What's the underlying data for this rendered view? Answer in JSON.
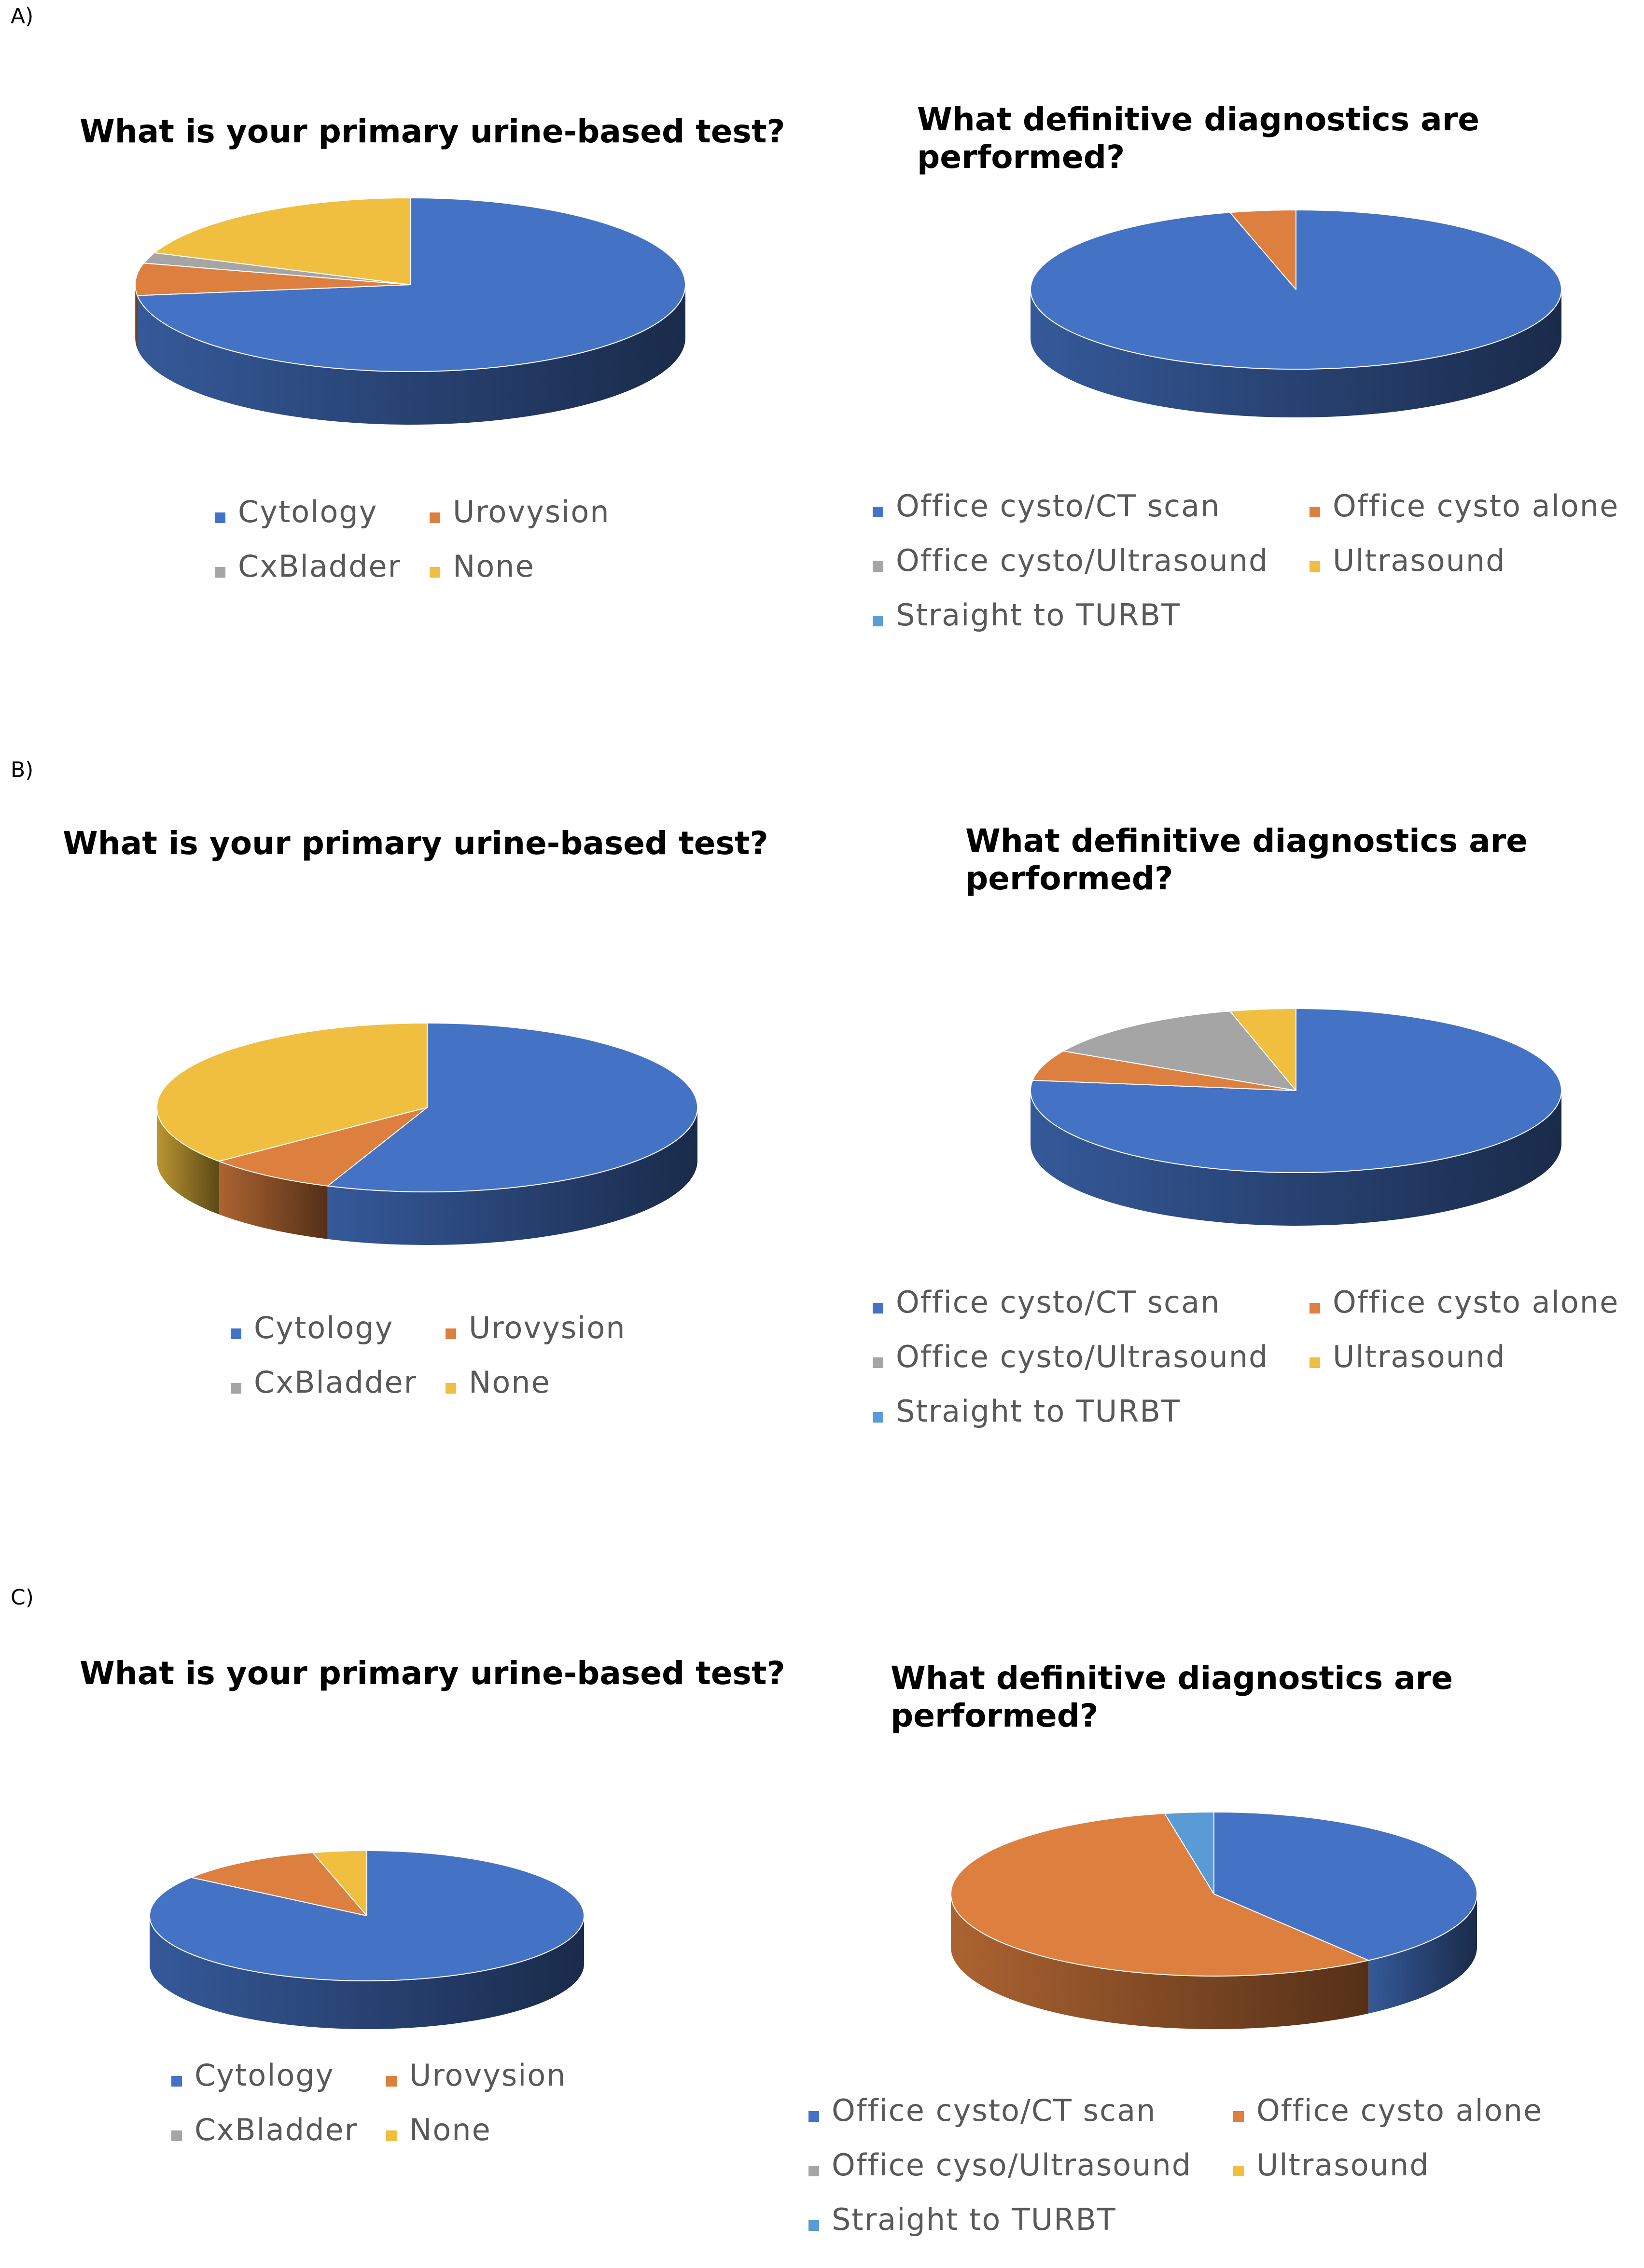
{
  "colors": {
    "Cytology": "#4472c4",
    "Urovysion": "#dd7f3f",
    "CxBladder": "#a5a5a5",
    "None": "#f0bf3f",
    "Office cysto/CT scan": "#4472c4",
    "Office cysto alone": "#dd7f3f",
    "Office cysto/Ultrasound": "#a5a5a5",
    "Office cyso/Ultrasound": "#a5a5a5",
    "Ultrasound": "#f0bf3f",
    "Straight to TURBT": "#5b9bd5"
  },
  "panels": [
    {
      "label": "A)"
    },
    {
      "label": "B)"
    },
    {
      "label": "C)"
    }
  ],
  "chart_data": [
    {
      "panel": "A",
      "type": "pie",
      "style": "3d",
      "title": "What is your primary urine-based test?",
      "categories": [
        "Cytology",
        "Urovysion",
        "CxBladder",
        "None"
      ],
      "values": [
        73,
        6,
        2,
        19
      ]
    },
    {
      "panel": "A",
      "type": "pie",
      "style": "3d",
      "title": "What definitive diagnostics are performed?",
      "categories": [
        "Office cysto/CT scan",
        "Office cysto alone",
        "Office cysto/Ultrasound",
        "Ultrasound",
        "Straight to TURBT"
      ],
      "values": [
        96,
        4,
        0,
        0,
        0
      ]
    },
    {
      "panel": "B",
      "type": "pie",
      "style": "3d",
      "title": "What is your primary urine-based test?",
      "categories": [
        "Cytology",
        "Urovysion",
        "CxBladder",
        "None"
      ],
      "values": [
        56,
        8,
        0,
        36
      ]
    },
    {
      "panel": "B",
      "type": "pie",
      "style": "3d",
      "title": "What definitive diagnostics are performed?",
      "categories": [
        "Office cysto/CT scan",
        "Office cysto alone",
        "Office cysto/Ultrasound",
        "Ultrasound",
        "Straight to TURBT"
      ],
      "values": [
        77,
        6,
        13,
        4,
        0
      ]
    },
    {
      "panel": "C",
      "type": "pie",
      "style": "3d",
      "title": "What is your primary urine-based test?",
      "categories": [
        "Cytology",
        "Urovysion",
        "CxBladder",
        "None"
      ],
      "values": [
        85,
        11,
        0,
        4
      ]
    },
    {
      "panel": "C",
      "type": "pie",
      "style": "3d",
      "title": "What definitive diagnostics are performed?",
      "categories": [
        "Office cysto/CT scan",
        "Office cysto alone",
        "Office cyso/Ultrasound",
        "Ultrasound",
        "Straight to TURBT"
      ],
      "values": [
        40,
        57,
        0,
        0,
        3
      ]
    }
  ]
}
